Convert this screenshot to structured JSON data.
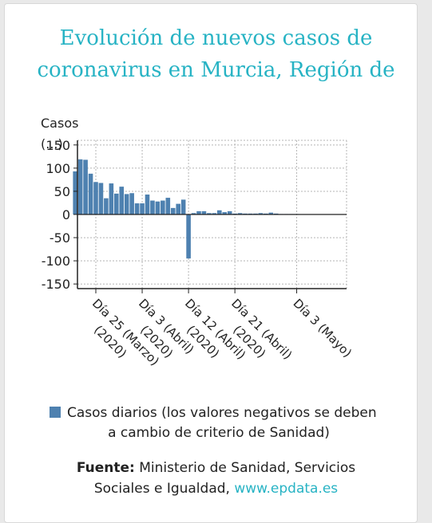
{
  "chart_data": {
    "type": "bar",
    "title_lines": [
      "Evolución de nuevos casos de",
      "coronavirus en Murcia, Región de"
    ],
    "ylabel": "Casos (...)",
    "ylabel_lines": [
      "Casos",
      "(...)"
    ],
    "ylim": [
      -160,
      160
    ],
    "yticks": [
      150,
      100,
      50,
      0,
      -50,
      -100,
      -150
    ],
    "grid": true,
    "start_date": "2020-03-21",
    "xticks": [
      {
        "date": "2020-03-25",
        "lines": [
          "Día 25 (Marzo)",
          "(2020)"
        ]
      },
      {
        "date": "2020-04-03",
        "lines": [
          "Día 3 (Abril)",
          "(2020)"
        ]
      },
      {
        "date": "2020-04-12",
        "lines": [
          "Día 12 (Abril)",
          "(2020)"
        ]
      },
      {
        "date": "2020-04-21",
        "lines": [
          "Día 21 (Abril)",
          "(2020)"
        ]
      },
      {
        "date": "2020-05-03",
        "lines": [
          "Día 3 (Mayo)"
        ]
      }
    ],
    "series": [
      {
        "name": "Casos diarios (los valores negativos se deben a cambio de criterio de Sanidad)",
        "color": "#4e81b0",
        "values": [
          93,
          119,
          118,
          88,
          70,
          68,
          35,
          67,
          45,
          60,
          44,
          46,
          24,
          24,
          43,
          30,
          28,
          30,
          36,
          14,
          23,
          32,
          -95,
          3,
          7,
          7,
          3,
          3,
          9,
          5,
          7,
          2,
          3,
          2,
          2,
          2,
          3,
          2,
          4,
          2,
          1,
          1,
          1,
          1
        ]
      }
    ]
  },
  "legend": {
    "lines": [
      "Casos diarios (los valores negativos se deben",
      "a cambio de criterio de Sanidad)"
    ]
  },
  "source": {
    "label": "Fuente:",
    "text": " Ministerio de Sanidad, Servicios",
    "text2": "Sociales e Igualdad, ",
    "link": "www.epdata.es"
  }
}
